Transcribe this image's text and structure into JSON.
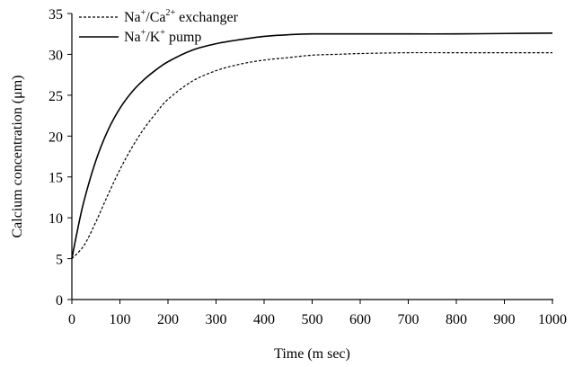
{
  "chart_data": {
    "type": "line",
    "xlabel": "Time (m sec)",
    "ylabel": "Calcium concentration (μm)",
    "xlim": [
      0,
      1000
    ],
    "ylim": [
      0,
      35
    ],
    "x_ticks": [
      0,
      100,
      200,
      300,
      400,
      500,
      600,
      700,
      800,
      900,
      1000
    ],
    "y_ticks": [
      0,
      5,
      10,
      15,
      20,
      25,
      30,
      35
    ],
    "grid": false,
    "legend_position": "top-left",
    "series": [
      {
        "name": "Na+/Ca2+ exchanger",
        "legend": {
          "base1": "Na",
          "sup1": "+",
          "mid": "/Ca",
          "sup2": "2+",
          "tail": " exchanger"
        },
        "style": "dashed",
        "x": [
          0,
          25,
          50,
          75,
          100,
          125,
          150,
          175,
          200,
          250,
          300,
          350,
          400,
          450,
          500,
          550,
          600,
          700,
          800,
          900,
          1000
        ],
        "y": [
          5.0,
          6.6,
          9.5,
          12.8,
          15.9,
          18.6,
          20.9,
          22.8,
          24.5,
          26.7,
          28.0,
          28.8,
          29.3,
          29.6,
          29.9,
          30.0,
          30.1,
          30.2,
          30.2,
          30.2,
          30.2
        ]
      },
      {
        "name": "Na+/K+ pump",
        "legend": {
          "base1": "Na",
          "sup1": "+",
          "mid": "/K",
          "sup2": "+",
          "tail": " pump"
        },
        "style": "solid",
        "x": [
          0,
          10,
          25,
          50,
          75,
          100,
          125,
          150,
          175,
          200,
          250,
          300,
          350,
          400,
          450,
          500,
          600,
          700,
          800,
          900,
          1000
        ],
        "y": [
          5.0,
          8.0,
          12.0,
          17.0,
          20.7,
          23.4,
          25.4,
          26.9,
          28.1,
          29.1,
          30.5,
          31.3,
          31.8,
          32.2,
          32.4,
          32.5,
          32.5,
          32.5,
          32.5,
          32.55,
          32.6
        ]
      }
    ]
  }
}
